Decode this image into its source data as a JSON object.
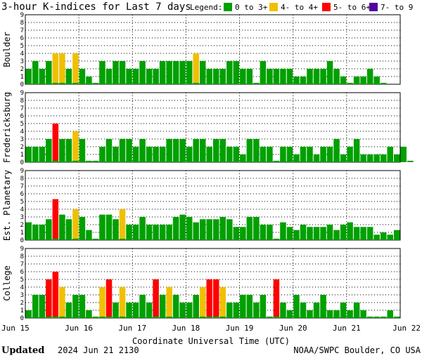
{
  "chart_data": {
    "type": "bar",
    "title": "3-hour K-indices for Last 7 days",
    "legend": {
      "label": "Legend:",
      "position": "top-right",
      "entries": [
        {
          "label": "0 to 3+",
          "color": "#00a000"
        },
        {
          "label": "4- to 4+",
          "color": "#f0c000"
        },
        {
          "label": "5- to 6+",
          "color": "#ff0000"
        },
        {
          "label": "7- to 9",
          "color": "#5000a0"
        }
      ]
    },
    "xlabel": "Coordinate Universal Time (UTC)",
    "x_ticks": [
      "Jun 15",
      "Jun 16",
      "Jun 17",
      "Jun 18",
      "Jun 19",
      "Jun 20",
      "Jun 21",
      "Jun 22"
    ],
    "y_ticks": [
      "0",
      "1",
      "2",
      "3",
      "4",
      "5",
      "6",
      "7",
      "8",
      "9"
    ],
    "ylim": [
      0,
      9
    ],
    "bins_per_day": 8,
    "grid": true,
    "series": [
      {
        "name": "Boulder",
        "values": [
          2,
          3,
          2,
          3,
          4,
          4,
          2,
          4,
          2,
          1,
          0,
          3,
          2,
          3,
          3,
          2,
          2,
          3,
          2,
          2,
          3,
          3,
          3,
          3,
          3,
          4,
          3,
          2,
          2,
          2,
          3,
          3,
          2,
          2,
          0,
          3,
          2,
          2,
          2,
          2,
          1,
          1,
          2,
          2,
          2,
          3,
          2,
          1,
          0,
          1,
          1,
          2,
          1,
          0
        ]
      },
      {
        "name": "Fredericksburg",
        "values": [
          2,
          2,
          2,
          3,
          5,
          3,
          3,
          4,
          3,
          0,
          0,
          2,
          3,
          2,
          3,
          3,
          2,
          3,
          2,
          2,
          2,
          3,
          3,
          3,
          2,
          3,
          3,
          2,
          3,
          3,
          2,
          2,
          1,
          3,
          3,
          2,
          2,
          0,
          2,
          2,
          1,
          2,
          2,
          1,
          2,
          2,
          3,
          1,
          2,
          3,
          1,
          1,
          1,
          1,
          2,
          1,
          2,
          0
        ]
      },
      {
        "name": "Est. Planetary",
        "values": [
          2.3,
          2,
          2,
          2.7,
          5.3,
          3.3,
          2.7,
          4,
          3,
          1.3,
          0,
          3.3,
          3.3,
          2.7,
          4,
          2,
          2,
          3,
          2,
          2,
          2,
          2,
          3,
          3.3,
          3,
          2.3,
          2.7,
          2.7,
          2.7,
          3,
          2.7,
          1.7,
          1.7,
          3,
          3,
          2,
          2,
          0,
          2.3,
          1.7,
          1.3,
          2,
          1.7,
          1.7,
          1.7,
          2,
          1.3,
          2,
          2.3,
          1.7,
          1.7,
          1.7,
          0.7,
          1,
          0.7,
          1.3
        ]
      },
      {
        "name": "College",
        "values": [
          1,
          3,
          3,
          5,
          6,
          4,
          2,
          3,
          3,
          1,
          0,
          4,
          5,
          2,
          4,
          2,
          2,
          3,
          2,
          5,
          3,
          4,
          3,
          2,
          2,
          3,
          4,
          5,
          5,
          4,
          2,
          2,
          3,
          3,
          2,
          3,
          0,
          5,
          2,
          1,
          3,
          2,
          1,
          2,
          3,
          1,
          1,
          2,
          1,
          2,
          1,
          0,
          0,
          0,
          1,
          0
        ]
      }
    ]
  },
  "footer": {
    "updated_label": "Updated",
    "updated_value": "2024 Jun 21 2130",
    "credit": "NOAA/SWPC Boulder, CO USA"
  }
}
